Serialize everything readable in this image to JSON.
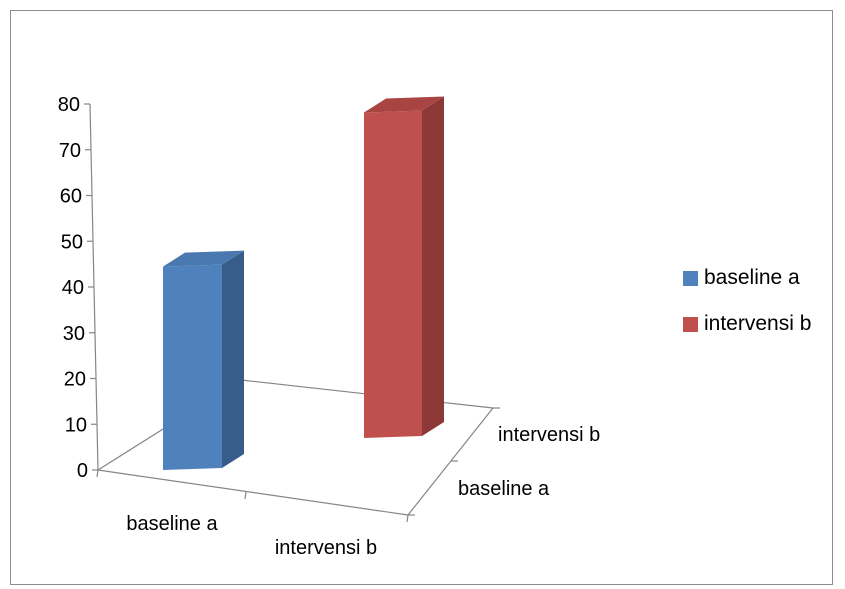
{
  "chart_data": {
    "type": "bar",
    "style": "3d-column",
    "series": [
      {
        "name": "baseline a",
        "category": "baseline a",
        "value": 45,
        "color": "#4f81bd",
        "top_color": "#4a78b0",
        "side_color": "#385d8a"
      },
      {
        "name": "intervensi b",
        "category": "intervensi b",
        "value": 72,
        "color": "#c0504d",
        "top_color": "#a84542",
        "side_color": "#8c3836"
      }
    ],
    "categories": [
      "baseline a",
      "intervensi b"
    ],
    "depth_categories": [
      "baseline a",
      "intervensi b"
    ],
    "yticks": [
      "0",
      "10",
      "20",
      "30",
      "40",
      "50",
      "60",
      "70",
      "80"
    ],
    "ylim": [
      0,
      80
    ],
    "legend_position": "right",
    "title": "",
    "xlabel": "",
    "ylabel": ""
  }
}
